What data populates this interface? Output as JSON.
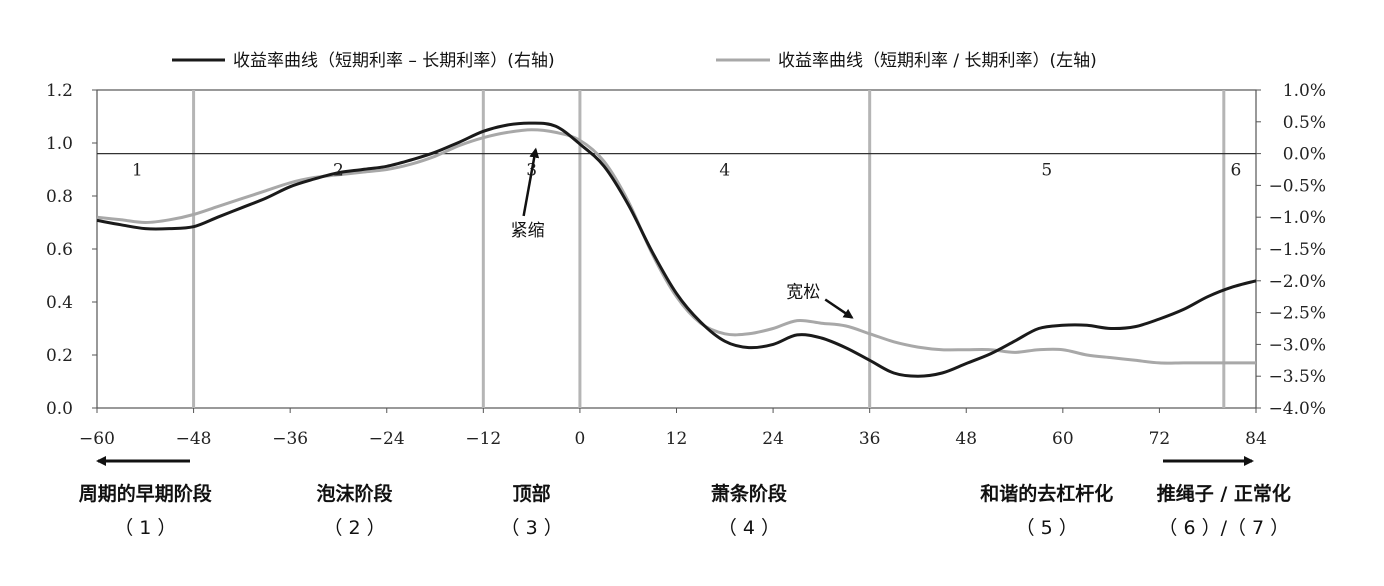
{
  "chart_data": {
    "type": "line",
    "title": "",
    "xlabel": "",
    "ylabel": "",
    "x_ticks": [
      "−60",
      "−48",
      "−36",
      "−24",
      "−12",
      "0",
      "12",
      "24",
      "36",
      "48",
      "60",
      "72",
      "84"
    ],
    "x_range": [
      -60,
      84
    ],
    "y_left": {
      "range": [
        0,
        1.2
      ],
      "ticks": [
        "0.0",
        "0.2",
        "0.4",
        "0.6",
        "0.8",
        "1.0",
        "1.2"
      ]
    },
    "y_right": {
      "range": [
        -4.0,
        1.0
      ],
      "ticks": [
        "1.0%",
        "0.5%",
        "0.0%",
        "−0.5%",
        "−1.0%",
        "−1.5%",
        "−2.0%",
        "−2.5%",
        "−3.0%",
        "−3.5%",
        "−4.0%"
      ]
    },
    "legend_position": "top",
    "series": [
      {
        "name": "收益率曲线（短期利率 – 长期利率）(右轴)",
        "axis": "right",
        "color": "#1a1a1a",
        "points": [
          [
            -60,
            -1.05
          ],
          [
            -57,
            -1.12
          ],
          [
            -54,
            -1.18
          ],
          [
            -51,
            -1.18
          ],
          [
            -48,
            -1.15
          ],
          [
            -45,
            -1.0
          ],
          [
            -42,
            -0.85
          ],
          [
            -39,
            -0.7
          ],
          [
            -36,
            -0.52
          ],
          [
            -33,
            -0.4
          ],
          [
            -30,
            -0.3
          ],
          [
            -27,
            -0.25
          ],
          [
            -24,
            -0.2
          ],
          [
            -21,
            -0.1
          ],
          [
            -18,
            0.02
          ],
          [
            -15,
            0.18
          ],
          [
            -12,
            0.35
          ],
          [
            -9,
            0.45
          ],
          [
            -6,
            0.48
          ],
          [
            -3,
            0.43
          ],
          [
            0,
            0.15
          ],
          [
            3,
            -0.2
          ],
          [
            6,
            -0.8
          ],
          [
            9,
            -1.55
          ],
          [
            12,
            -2.2
          ],
          [
            15,
            -2.65
          ],
          [
            18,
            -2.95
          ],
          [
            21,
            -3.05
          ],
          [
            24,
            -3.0
          ],
          [
            27,
            -2.85
          ],
          [
            30,
            -2.9
          ],
          [
            33,
            -3.05
          ],
          [
            36,
            -3.25
          ],
          [
            39,
            -3.45
          ],
          [
            42,
            -3.5
          ],
          [
            45,
            -3.45
          ],
          [
            48,
            -3.3
          ],
          [
            51,
            -3.15
          ],
          [
            54,
            -2.95
          ],
          [
            57,
            -2.75
          ],
          [
            60,
            -2.7
          ],
          [
            63,
            -2.7
          ],
          [
            66,
            -2.75
          ],
          [
            69,
            -2.72
          ],
          [
            72,
            -2.6
          ],
          [
            75,
            -2.45
          ],
          [
            78,
            -2.25
          ],
          [
            81,
            -2.1
          ],
          [
            84,
            -2.0
          ]
        ]
      },
      {
        "name": "收益率曲线（短期利率 / 长期利率）(左轴)",
        "axis": "left",
        "color": "#a8a8a8",
        "points": [
          [
            -60,
            0.72
          ],
          [
            -57,
            0.71
          ],
          [
            -54,
            0.7
          ],
          [
            -51,
            0.71
          ],
          [
            -48,
            0.73
          ],
          [
            -45,
            0.76
          ],
          [
            -42,
            0.79
          ],
          [
            -39,
            0.82
          ],
          [
            -36,
            0.85
          ],
          [
            -33,
            0.87
          ],
          [
            -30,
            0.88
          ],
          [
            -27,
            0.89
          ],
          [
            -24,
            0.9
          ],
          [
            -21,
            0.92
          ],
          [
            -18,
            0.95
          ],
          [
            -15,
            0.99
          ],
          [
            -12,
            1.02
          ],
          [
            -9,
            1.04
          ],
          [
            -6,
            1.05
          ],
          [
            -3,
            1.04
          ],
          [
            0,
            1.01
          ],
          [
            3,
            0.93
          ],
          [
            6,
            0.78
          ],
          [
            9,
            0.58
          ],
          [
            12,
            0.42
          ],
          [
            15,
            0.32
          ],
          [
            18,
            0.28
          ],
          [
            21,
            0.28
          ],
          [
            24,
            0.3
          ],
          [
            27,
            0.33
          ],
          [
            30,
            0.32
          ],
          [
            33,
            0.31
          ],
          [
            36,
            0.28
          ],
          [
            39,
            0.25
          ],
          [
            42,
            0.23
          ],
          [
            45,
            0.22
          ],
          [
            48,
            0.22
          ],
          [
            51,
            0.22
          ],
          [
            54,
            0.21
          ],
          [
            57,
            0.22
          ],
          [
            60,
            0.22
          ],
          [
            63,
            0.2
          ],
          [
            66,
            0.19
          ],
          [
            69,
            0.18
          ],
          [
            72,
            0.17
          ],
          [
            75,
            0.17
          ],
          [
            78,
            0.17
          ],
          [
            81,
            0.17
          ],
          [
            84,
            0.17
          ]
        ]
      }
    ],
    "vertical_lines": [
      -48,
      -12,
      0,
      36,
      80
    ],
    "phase_numbers": [
      {
        "label": "1",
        "x": -55
      },
      {
        "label": "2",
        "x": -30
      },
      {
        "label": "3",
        "x": -6
      },
      {
        "label": "4",
        "x": 18
      },
      {
        "label": "5",
        "x": 58
      },
      {
        "label": "6",
        "x": 81.5
      }
    ],
    "annotations": [
      {
        "label": "紧缩",
        "x": -6,
        "y_right": -1.2
      },
      {
        "label": "宽松",
        "x": 27,
        "y_right": -2.2
      }
    ]
  },
  "phases": [
    {
      "name": "周期的早期阶段",
      "id": "（ 1 ）",
      "x": -54
    },
    {
      "name": "泡沫阶段",
      "id": "（ 2 ）",
      "x": -28
    },
    {
      "name": "顶部",
      "id": "（ 3 ）",
      "x": -6
    },
    {
      "name": "萧条阶段",
      "id": "（ 4 ）",
      "x": 21
    },
    {
      "name": "和谐的去杠杆化",
      "id": "（ 5 ）",
      "x": 58
    },
    {
      "name": "推绳子 / 正常化",
      "id": "（ 6 ）/（ 7 ）",
      "x": 80
    }
  ]
}
